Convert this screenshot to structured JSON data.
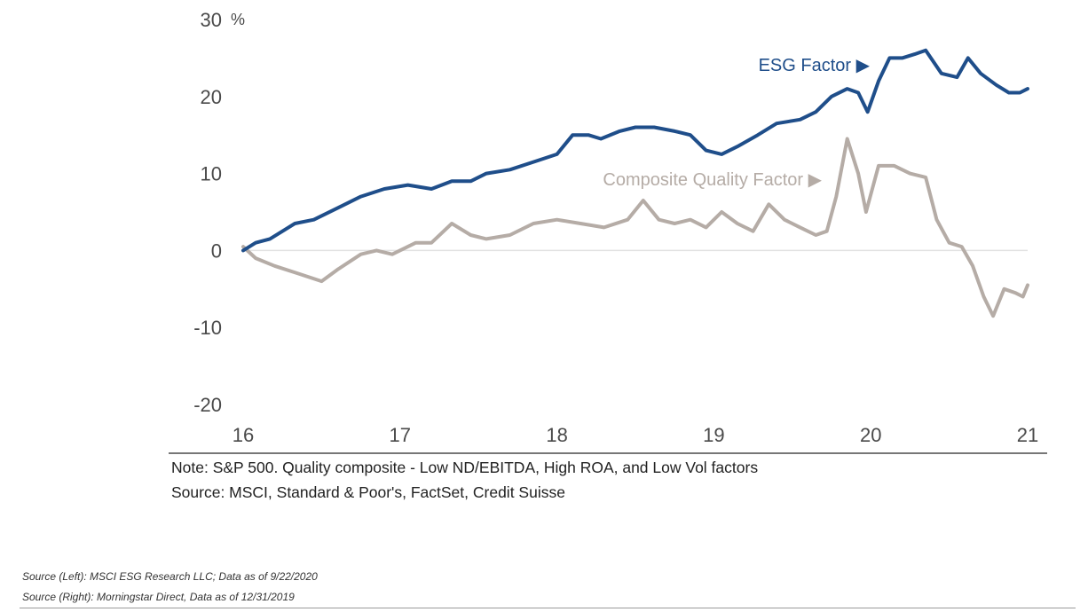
{
  "chart_data": {
    "type": "line",
    "x_tick_labels": [
      "16",
      "17",
      "18",
      "19",
      "20",
      "21"
    ],
    "xlim": [
      2016,
      2021
    ],
    "ylim": [
      -20,
      30
    ],
    "y_tick_labels": [
      "30",
      "20",
      "10",
      "0",
      "-10",
      "-20"
    ],
    "y_unit": "%",
    "zero_line": true,
    "series": [
      {
        "name": "ESG Factor",
        "label": "ESG Factor ▶",
        "color": "#1f4e8a",
        "points": [
          [
            2016.0,
            0.0
          ],
          [
            2016.08,
            1.0
          ],
          [
            2016.17,
            1.5
          ],
          [
            2016.33,
            3.5
          ],
          [
            2016.45,
            4.0
          ],
          [
            2016.6,
            5.5
          ],
          [
            2016.75,
            7.0
          ],
          [
            2016.9,
            8.0
          ],
          [
            2017.05,
            8.5
          ],
          [
            2017.2,
            8.0
          ],
          [
            2017.33,
            9.0
          ],
          [
            2017.45,
            9.0
          ],
          [
            2017.55,
            10.0
          ],
          [
            2017.7,
            10.5
          ],
          [
            2017.85,
            11.5
          ],
          [
            2018.0,
            12.5
          ],
          [
            2018.1,
            15.0
          ],
          [
            2018.2,
            15.0
          ],
          [
            2018.28,
            14.5
          ],
          [
            2018.4,
            15.5
          ],
          [
            2018.5,
            16.0
          ],
          [
            2018.62,
            16.0
          ],
          [
            2018.75,
            15.5
          ],
          [
            2018.85,
            15.0
          ],
          [
            2018.95,
            13.0
          ],
          [
            2019.05,
            12.5
          ],
          [
            2019.15,
            13.5
          ],
          [
            2019.28,
            15.0
          ],
          [
            2019.4,
            16.5
          ],
          [
            2019.55,
            17.0
          ],
          [
            2019.65,
            18.0
          ],
          [
            2019.75,
            20.0
          ],
          [
            2019.85,
            21.0
          ],
          [
            2019.92,
            20.5
          ],
          [
            2019.98,
            18.0
          ],
          [
            2020.05,
            22.0
          ],
          [
            2020.12,
            25.0
          ],
          [
            2020.2,
            25.0
          ],
          [
            2020.28,
            25.5
          ],
          [
            2020.35,
            26.0
          ],
          [
            2020.45,
            23.0
          ],
          [
            2020.55,
            22.5
          ],
          [
            2020.62,
            25.0
          ],
          [
            2020.7,
            23.0
          ],
          [
            2020.8,
            21.5
          ],
          [
            2020.88,
            20.5
          ],
          [
            2020.95,
            20.5
          ],
          [
            2021.0,
            21.0
          ]
        ]
      },
      {
        "name": "Composite Quality Factor",
        "label": "Composite Quality Factor ▶",
        "color": "#b5aca6",
        "points": [
          [
            2016.0,
            0.5
          ],
          [
            2016.08,
            -1.0
          ],
          [
            2016.2,
            -2.0
          ],
          [
            2016.35,
            -3.0
          ],
          [
            2016.5,
            -4.0
          ],
          [
            2016.6,
            -2.5
          ],
          [
            2016.75,
            -0.5
          ],
          [
            2016.85,
            0.0
          ],
          [
            2016.95,
            -0.5
          ],
          [
            2017.1,
            1.0
          ],
          [
            2017.2,
            1.0
          ],
          [
            2017.33,
            3.5
          ],
          [
            2017.45,
            2.0
          ],
          [
            2017.55,
            1.5
          ],
          [
            2017.7,
            2.0
          ],
          [
            2017.85,
            3.5
          ],
          [
            2018.0,
            4.0
          ],
          [
            2018.15,
            3.5
          ],
          [
            2018.3,
            3.0
          ],
          [
            2018.45,
            4.0
          ],
          [
            2018.55,
            6.5
          ],
          [
            2018.65,
            4.0
          ],
          [
            2018.75,
            3.5
          ],
          [
            2018.85,
            4.0
          ],
          [
            2018.95,
            3.0
          ],
          [
            2019.05,
            5.0
          ],
          [
            2019.15,
            3.5
          ],
          [
            2019.25,
            2.5
          ],
          [
            2019.35,
            6.0
          ],
          [
            2019.45,
            4.0
          ],
          [
            2019.55,
            3.0
          ],
          [
            2019.65,
            2.0
          ],
          [
            2019.72,
            2.5
          ],
          [
            2019.78,
            7.0
          ],
          [
            2019.85,
            14.5
          ],
          [
            2019.92,
            10.0
          ],
          [
            2019.97,
            5.0
          ],
          [
            2020.05,
            11.0
          ],
          [
            2020.15,
            11.0
          ],
          [
            2020.25,
            10.0
          ],
          [
            2020.35,
            9.5
          ],
          [
            2020.42,
            4.0
          ],
          [
            2020.5,
            1.0
          ],
          [
            2020.58,
            0.5
          ],
          [
            2020.65,
            -2.0
          ],
          [
            2020.72,
            -6.0
          ],
          [
            2020.78,
            -8.5
          ],
          [
            2020.85,
            -5.0
          ],
          [
            2020.92,
            -5.5
          ],
          [
            2020.97,
            -6.0
          ],
          [
            2021.0,
            -4.5
          ]
        ]
      }
    ]
  },
  "notes": {
    "line1": "Note: S&P 500. Quality composite - Low ND/EBITDA, High ROA, and Low Vol factors",
    "line2": "Source: MSCI, Standard & Poor's, FactSet, Credit Suisse"
  },
  "sources": {
    "left": "Source (Left): MSCI ESG Research LLC; Data as of 9/22/2020",
    "right": "Source (Right): Morningstar Direct, Data as of 12/31/2019"
  }
}
